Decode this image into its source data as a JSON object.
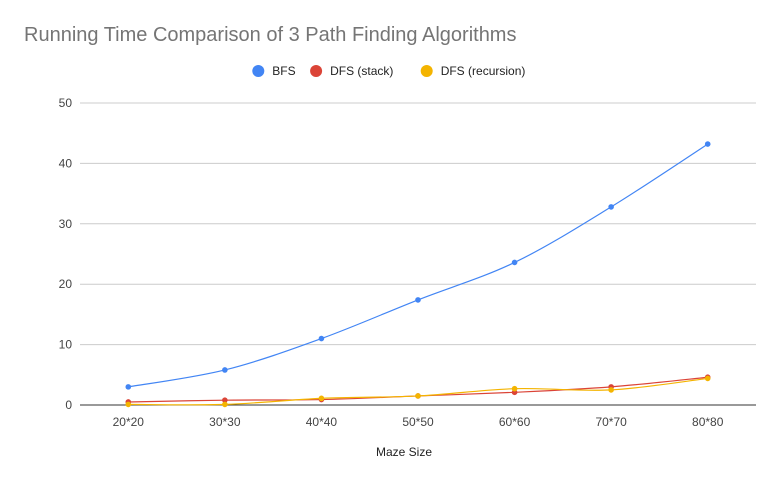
{
  "chart_data": {
    "type": "line",
    "title": "Running Time Comparison of 3 Path Finding Algorithms",
    "xlabel": "Maze Size",
    "ylabel": "",
    "categories": [
      "20*20",
      "30*30",
      "40*40",
      "50*50",
      "60*60",
      "70*70",
      "80*80"
    ],
    "ylim": [
      0,
      50
    ],
    "yticks": [
      0,
      10,
      20,
      30,
      40,
      50
    ],
    "grid": true,
    "legend_position": "top",
    "series": [
      {
        "name": "BFS",
        "color": "#4285f4",
        "values": [
          3.0,
          5.8,
          11.0,
          17.4,
          23.6,
          32.8,
          43.2
        ]
      },
      {
        "name": "DFS (stack)",
        "color": "#db4437",
        "values": [
          0.5,
          0.8,
          0.9,
          1.5,
          2.1,
          3.0,
          4.6
        ]
      },
      {
        "name": "DFS (recursion)",
        "color": "#f4b400",
        "values": [
          0.1,
          0.1,
          1.1,
          1.5,
          2.7,
          2.5,
          4.4
        ]
      }
    ]
  }
}
